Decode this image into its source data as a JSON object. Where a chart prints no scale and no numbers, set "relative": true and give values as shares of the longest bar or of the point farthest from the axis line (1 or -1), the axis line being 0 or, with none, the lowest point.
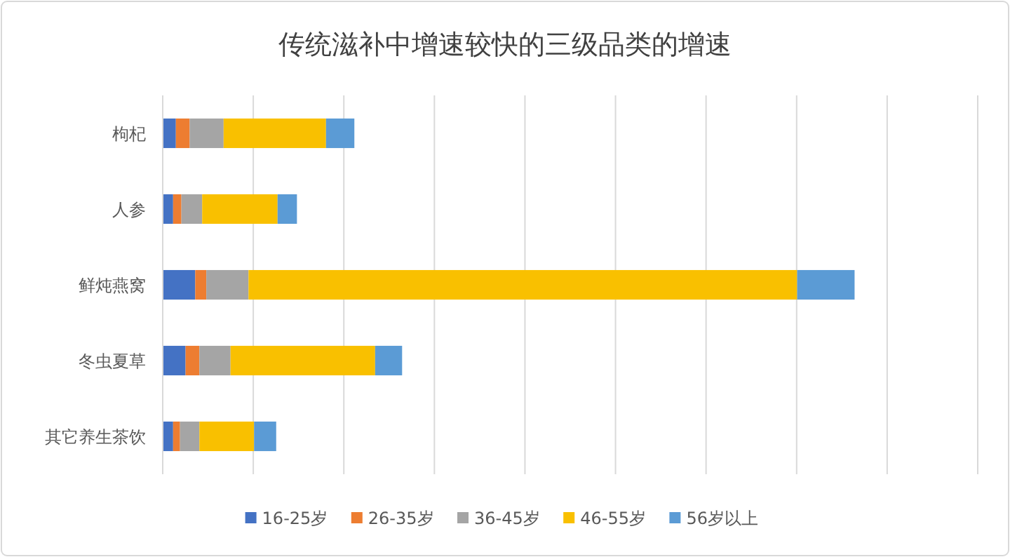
{
  "chart_data": {
    "type": "bar",
    "orientation": "horizontal",
    "stacked": true,
    "relative": true,
    "title": "传统滋补中增速较快的三级品类的增速",
    "categories": [
      "枸杞",
      "人参",
      "鲜炖燕窝",
      "冬虫夏草",
      "其它养生茶饮"
    ],
    "series": [
      {
        "name": "16-25岁",
        "color": "#4472c4",
        "values": [
          0.019,
          0.015,
          0.047,
          0.033,
          0.015
        ]
      },
      {
        "name": "26-35岁",
        "color": "#ed7d31",
        "values": [
          0.02,
          0.012,
          0.016,
          0.02,
          0.01
        ]
      },
      {
        "name": "36-45岁",
        "color": "#a5a5a5",
        "values": [
          0.049,
          0.03,
          0.061,
          0.045,
          0.028
        ]
      },
      {
        "name": "46-55岁",
        "color": "#f9c000",
        "values": [
          0.148,
          0.109,
          0.793,
          0.209,
          0.079
        ]
      },
      {
        "name": "56岁以上",
        "color": "#5b9bd5",
        "values": [
          0.041,
          0.028,
          0.083,
          0.039,
          0.032
        ]
      }
    ],
    "grid": "x",
    "legend": "bottom"
  }
}
